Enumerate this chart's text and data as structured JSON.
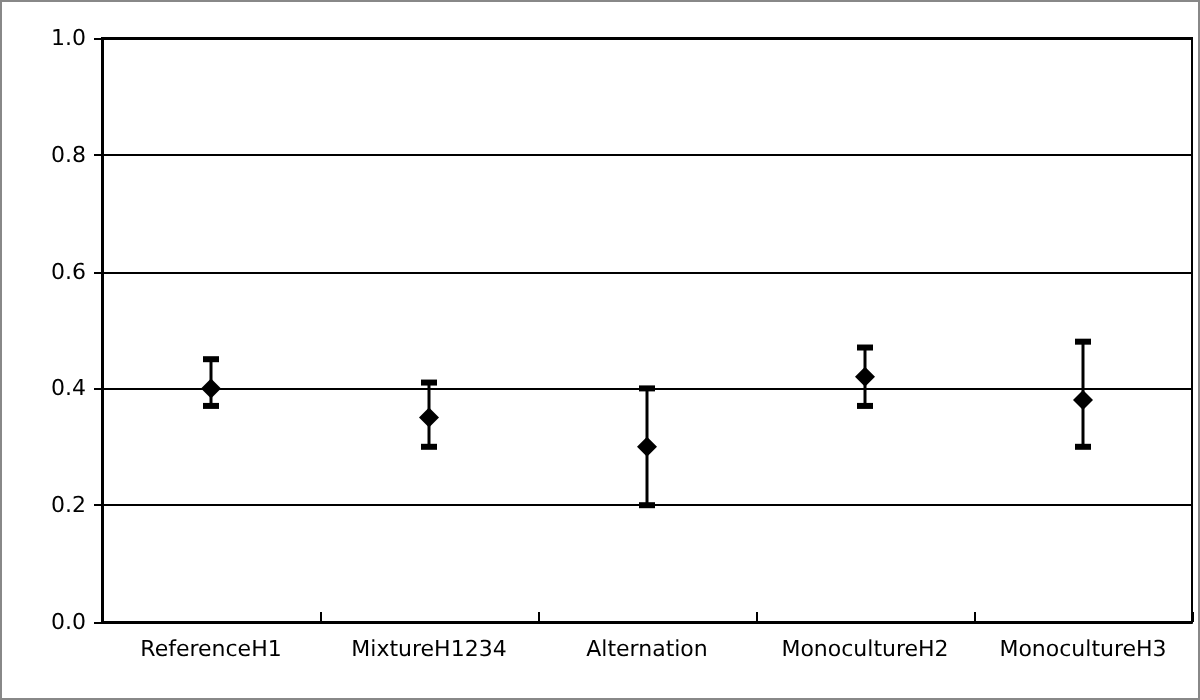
{
  "chart_data": {
    "type": "scatter",
    "categories": [
      "ReferenceH1",
      "MixtureH1234",
      "Alternation",
      "MonocultureH2",
      "MonocultureH3"
    ],
    "series": [
      {
        "color": "#000000",
        "values": [
          0.4,
          0.35,
          0.3,
          0.42,
          0.38
        ],
        "errors": [
          [
            0.37,
            0.45
          ],
          [
            0.3,
            0.41
          ],
          [
            0.2,
            0.4
          ],
          [
            0.37,
            0.47
          ],
          [
            0.3,
            0.48
          ]
        ]
      }
    ],
    "ylim": [
      0,
      1
    ],
    "yticks": [
      {
        "value": 0,
        "label": "0.0"
      },
      {
        "value": 0.2,
        "label": "0.2"
      },
      {
        "value": 0.4,
        "label": "0.4"
      },
      {
        "value": 0.6,
        "label": "0.6"
      },
      {
        "value": 0.8,
        "label": "0.8"
      },
      {
        "value": 1,
        "label": "1.0"
      }
    ],
    "grid": "y",
    "marker": "diamond"
  }
}
